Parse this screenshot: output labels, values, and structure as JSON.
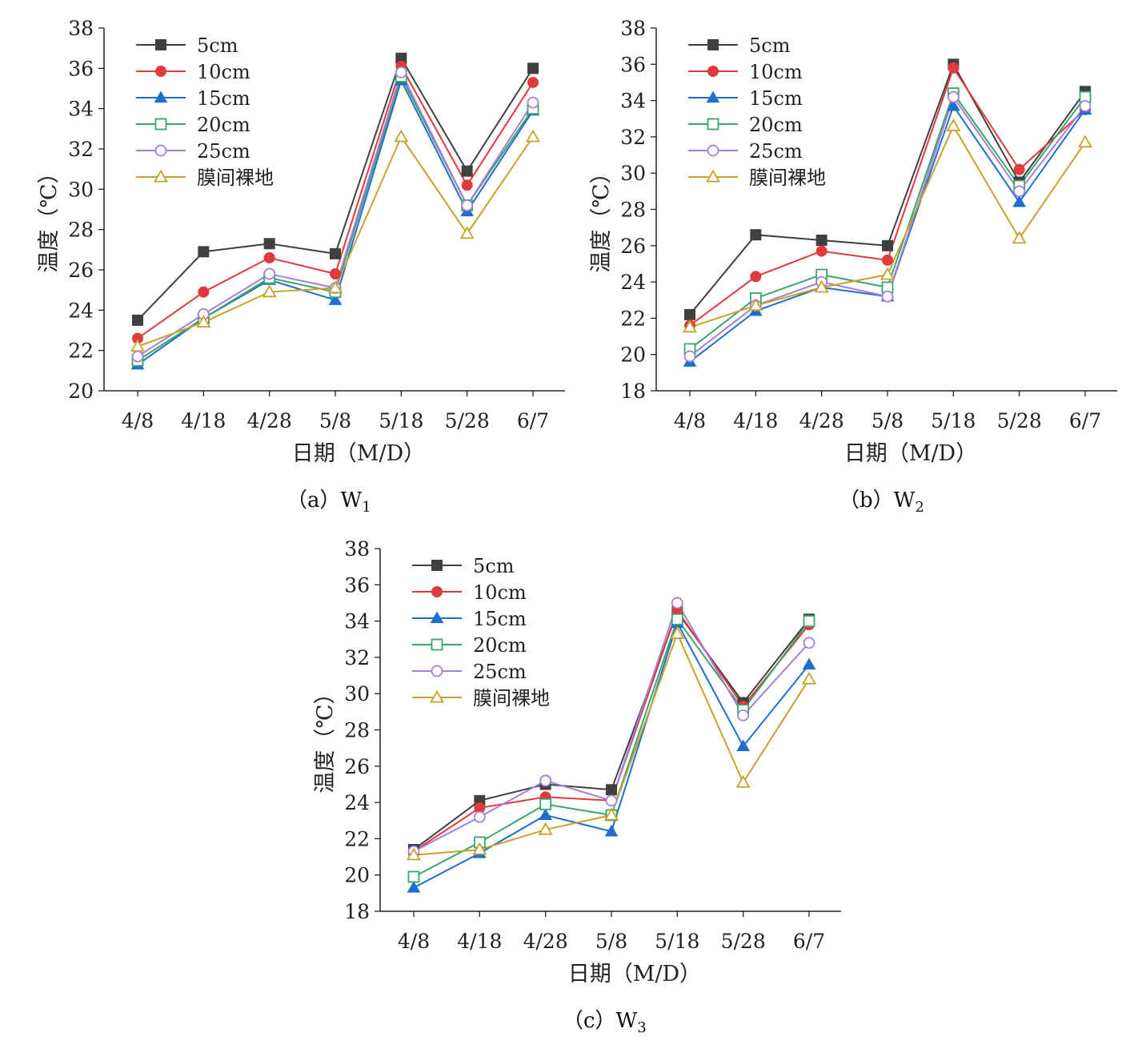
{
  "chart_data": [
    {
      "type": "line",
      "caption": "（a）W",
      "caption_sub": "1",
      "xlabel": "日期（M/D）",
      "ylabel": "温度（℃）",
      "categories": [
        "4/8",
        "4/18",
        "4/28",
        "5/8",
        "5/18",
        "5/28",
        "6/7"
      ],
      "ylim": [
        20,
        38
      ],
      "yticks": [
        20,
        22,
        24,
        26,
        28,
        30,
        32,
        34,
        36,
        38
      ],
      "legend_position": "top-left",
      "series": [
        {
          "name": "5cm",
          "color": "#404040",
          "marker": "square-filled",
          "values": [
            23.5,
            26.9,
            27.3,
            26.8,
            36.5,
            30.9,
            36.0
          ]
        },
        {
          "name": "10cm",
          "color": "#e0393e",
          "marker": "circle-filled",
          "values": [
            22.6,
            24.9,
            26.6,
            25.8,
            36.1,
            30.2,
            35.3
          ]
        },
        {
          "name": "15cm",
          "color": "#1f6fd0",
          "marker": "triangle-filled",
          "values": [
            21.3,
            23.6,
            25.5,
            24.5,
            35.4,
            28.9,
            33.9
          ]
        },
        {
          "name": "20cm",
          "color": "#3aa56b",
          "marker": "square-open",
          "values": [
            21.5,
            23.6,
            25.6,
            24.9,
            35.6,
            29.2,
            34.0
          ]
        },
        {
          "name": "25cm",
          "color": "#a67ed6",
          "marker": "circle-open",
          "values": [
            21.7,
            23.8,
            25.8,
            25.1,
            35.8,
            29.2,
            34.3
          ]
        },
        {
          "name": "膜间裸地",
          "color": "#c8a22c",
          "marker": "triangle-open",
          "values": [
            22.2,
            23.4,
            24.9,
            25.1,
            32.6,
            27.8,
            32.6
          ]
        }
      ]
    },
    {
      "type": "line",
      "caption": "（b）W",
      "caption_sub": "2",
      "xlabel": "日期（M/D）",
      "ylabel": "温度（℃）",
      "categories": [
        "4/8",
        "4/18",
        "4/28",
        "5/8",
        "5/18",
        "5/28",
        "6/7"
      ],
      "ylim": [
        18,
        38
      ],
      "yticks": [
        18,
        20,
        22,
        24,
        26,
        28,
        30,
        32,
        34,
        36,
        38
      ],
      "legend_position": "top-left",
      "series": [
        {
          "name": "5cm",
          "color": "#404040",
          "marker": "square-filled",
          "values": [
            22.2,
            26.6,
            26.3,
            26.0,
            36.0,
            29.5,
            34.5
          ]
        },
        {
          "name": "10cm",
          "color": "#e0393e",
          "marker": "circle-filled",
          "values": [
            21.6,
            24.3,
            25.7,
            25.2,
            35.8,
            30.2,
            33.5
          ]
        },
        {
          "name": "15cm",
          "color": "#1f6fd0",
          "marker": "triangle-filled",
          "values": [
            19.6,
            22.4,
            23.7,
            23.2,
            33.7,
            28.4,
            33.5
          ]
        },
        {
          "name": "20cm",
          "color": "#3aa56b",
          "marker": "square-open",
          "values": [
            20.3,
            23.1,
            24.4,
            23.7,
            34.4,
            29.3,
            34.2
          ]
        },
        {
          "name": "25cm",
          "color": "#a67ed6",
          "marker": "circle-open",
          "values": [
            19.9,
            22.7,
            24.0,
            23.2,
            34.2,
            29.0,
            33.7
          ]
        },
        {
          "name": "膜间裸地",
          "color": "#c8a22c",
          "marker": "triangle-open",
          "values": [
            21.5,
            22.7,
            23.7,
            24.4,
            32.6,
            26.4,
            31.7
          ]
        }
      ]
    },
    {
      "type": "line",
      "caption": "（c）W",
      "caption_sub": "3",
      "xlabel": "日期（M/D）",
      "ylabel": "温度（℃）",
      "categories": [
        "4/8",
        "4/18",
        "4/28",
        "5/8",
        "5/18",
        "5/28",
        "6/7"
      ],
      "ylim": [
        18,
        38
      ],
      "yticks": [
        18,
        20,
        22,
        24,
        26,
        28,
        30,
        32,
        34,
        36,
        38
      ],
      "legend_position": "top-left",
      "series": [
        {
          "name": "5cm",
          "color": "#404040",
          "marker": "square-filled",
          "values": [
            21.4,
            24.1,
            25.0,
            24.7,
            34.5,
            29.5,
            34.1
          ]
        },
        {
          "name": "10cm",
          "color": "#e0393e",
          "marker": "circle-filled",
          "values": [
            21.3,
            23.7,
            24.3,
            24.1,
            34.6,
            29.3,
            33.8
          ]
        },
        {
          "name": "15cm",
          "color": "#1f6fd0",
          "marker": "triangle-filled",
          "values": [
            19.3,
            21.2,
            23.3,
            22.4,
            33.9,
            27.1,
            31.6
          ]
        },
        {
          "name": "20cm",
          "color": "#3aa56b",
          "marker": "square-open",
          "values": [
            19.9,
            21.8,
            23.9,
            23.3,
            34.1,
            29.1,
            34.0
          ]
        },
        {
          "name": "25cm",
          "color": "#a67ed6",
          "marker": "circle-open",
          "values": [
            21.3,
            23.2,
            25.2,
            24.1,
            35.0,
            28.8,
            32.8
          ]
        },
        {
          "name": "膜间裸地",
          "color": "#c8a22c",
          "marker": "triangle-open",
          "values": [
            21.1,
            21.4,
            22.5,
            23.3,
            33.3,
            25.1,
            30.8
          ]
        }
      ]
    }
  ]
}
